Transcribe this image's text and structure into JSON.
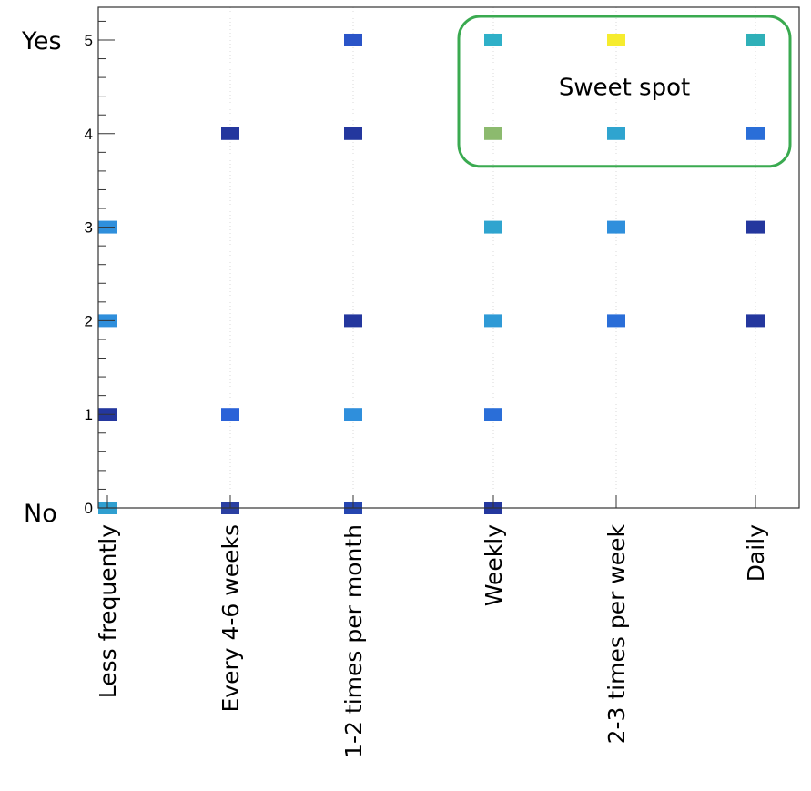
{
  "chart_data": {
    "type": "heatmap",
    "categories": [
      "Less frequently",
      "Every 4-6 weeks",
      "1-2 times per month",
      "Weekly",
      "2-3 times per week",
      "Daily"
    ],
    "y_ticks": [
      "0",
      "1",
      "2",
      "3",
      "4",
      "5"
    ],
    "ylim": [
      0,
      5.35
    ],
    "y_end_labels": {
      "low": "No",
      "high": "Yes"
    },
    "grid": "vertical-only",
    "annotation": {
      "text": "Sweet spot",
      "color": "#3aaa50",
      "x_range": [
        "Weekly",
        "Daily"
      ],
      "y_range": [
        4,
        5
      ]
    },
    "cells": [
      {
        "x": "Less frequently",
        "y": 0,
        "color": "#2f9fd0"
      },
      {
        "x": "Less frequently",
        "y": 1,
        "color": "#24379e"
      },
      {
        "x": "Less frequently",
        "y": 2,
        "color": "#2f8fdc"
      },
      {
        "x": "Less frequently",
        "y": 3,
        "color": "#2f8fdc"
      },
      {
        "x": "Every 4-6 weeks",
        "y": 0,
        "color": "#2a3fa2"
      },
      {
        "x": "Every 4-6 weeks",
        "y": 1,
        "color": "#2a62d8"
      },
      {
        "x": "Every 4-6 weeks",
        "y": 4,
        "color": "#24379e"
      },
      {
        "x": "1-2 times per month",
        "y": 0,
        "color": "#2545b0"
      },
      {
        "x": "1-2 times per month",
        "y": 1,
        "color": "#2f8fdc"
      },
      {
        "x": "1-2 times per month",
        "y": 2,
        "color": "#24379e"
      },
      {
        "x": "1-2 times per month",
        "y": 4,
        "color": "#24379e"
      },
      {
        "x": "1-2 times per month",
        "y": 5,
        "color": "#2a54c8"
      },
      {
        "x": "Weekly",
        "y": 0,
        "color": "#24379e"
      },
      {
        "x": "Weekly",
        "y": 1,
        "color": "#2a6ed8"
      },
      {
        "x": "Weekly",
        "y": 2,
        "color": "#2f9ad6"
      },
      {
        "x": "Weekly",
        "y": 3,
        "color": "#2fa4cf"
      },
      {
        "x": "Weekly",
        "y": 4,
        "color": "#8cba6e"
      },
      {
        "x": "Weekly",
        "y": 5,
        "color": "#2fb0c8"
      },
      {
        "x": "2-3 times per week",
        "y": 2,
        "color": "#2a6ed8"
      },
      {
        "x": "2-3 times per week",
        "y": 3,
        "color": "#2f8fdc"
      },
      {
        "x": "2-3 times per week",
        "y": 4,
        "color": "#2fa4cf"
      },
      {
        "x": "2-3 times per week",
        "y": 5,
        "color": "#f6ec2e"
      },
      {
        "x": "Daily",
        "y": 2,
        "color": "#24379e"
      },
      {
        "x": "Daily",
        "y": 3,
        "color": "#24379e"
      },
      {
        "x": "Daily",
        "y": 4,
        "color": "#2a6ed8"
      },
      {
        "x": "Daily",
        "y": 5,
        "color": "#2fb0b8"
      }
    ]
  }
}
